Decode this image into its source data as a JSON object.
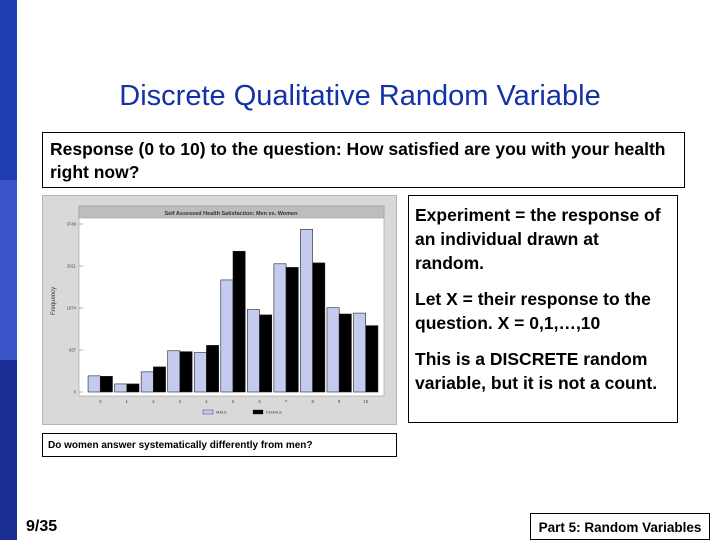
{
  "slide": {
    "title": "Discrete Qualitative Random Variable",
    "question": "Response (0 to 10) to the question: How satisfied are you with your health right now?",
    "experiment_points": [
      "Experiment = the response of an individual drawn at random.",
      "Let X = their response to the question.  X = 0,1,…,10",
      "This is a DISCRETE random variable, but it is not a count."
    ],
    "caption": "Do women answer systematically differently from men?",
    "page_number": "9/35",
    "part_label": "Part 5: Random Variables"
  },
  "colors": {
    "accent_blue": "#1432a8",
    "male_bar": "#c5cbef",
    "female_bar": "#000000",
    "plot_bg": "#ffffff",
    "frame_bg": "#d9d9d9"
  },
  "chart_data": {
    "type": "bar",
    "title": "Self Assessed Health Satisfaction: Men vs. Women",
    "ylabel": "Frequency",
    "xlabel": "",
    "categories": [
      "0",
      "1",
      "2",
      "3",
      "4",
      "5",
      "6",
      "7",
      "8",
      "9",
      "10"
    ],
    "y_ticks": [
      "0",
      "937",
      "1874",
      "2811",
      "3748"
    ],
    "ylim": [
      0,
      3748
    ],
    "series": [
      {
        "name": "MALE",
        "values": [
          360,
          180,
          450,
          920,
          880,
          2500,
          1840,
          2860,
          3630,
          1880,
          1760
        ]
      },
      {
        "name": "FEMALE",
        "values": [
          350,
          180,
          560,
          900,
          1040,
          3140,
          1720,
          2780,
          2880,
          1740,
          1480
        ]
      }
    ],
    "legend": "bottom",
    "grid": false
  }
}
